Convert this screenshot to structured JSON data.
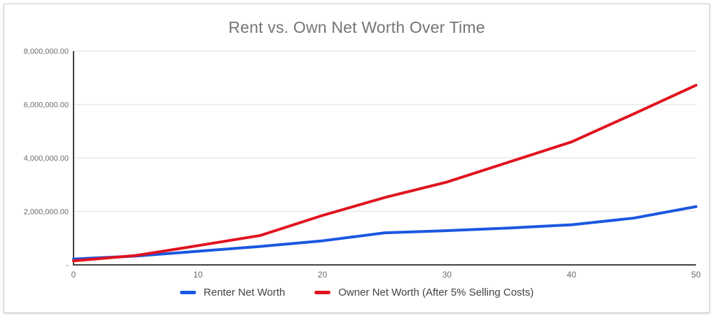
{
  "frame": {
    "background_color": "#ffffff",
    "border_color": "#cccccc"
  },
  "chart_data": {
    "type": "line",
    "title": "Rent vs. Own Net Worth Over Time",
    "title_color": "#757575",
    "xlabel": "",
    "ylabel": "",
    "xlim": [
      0,
      50
    ],
    "ylim": [
      0,
      8000000
    ],
    "grid": "horizontal",
    "grid_color": "#e8e8e8",
    "axis_color": "#424242",
    "tick_label_color": "#6b6b6b",
    "legend_position": "bottom",
    "legend_text_color": "#424242",
    "x": [
      0,
      5,
      10,
      15,
      20,
      25,
      30,
      35,
      40,
      45,
      50
    ],
    "x_ticks": [
      0,
      10,
      20,
      30,
      40,
      50
    ],
    "y_ticks": [
      {
        "value": 8000000,
        "label": "8,000,000.00"
      },
      {
        "value": 6000000,
        "label": "6,000,000.00"
      },
      {
        "value": 4000000,
        "label": "4,000,000.00"
      },
      {
        "value": 2000000,
        "label": "2,000,000.00"
      },
      {
        "value": 0,
        "label": "-"
      }
    ],
    "series": [
      {
        "name": "Renter Net Worth",
        "color": "#1b57e0",
        "values": [
          220000,
          330000,
          510000,
          690000,
          900000,
          1200000,
          1280000,
          1380000,
          1500000,
          1750000,
          2180000
        ]
      },
      {
        "name": "Owner Net Worth (After 5% Selling Costs)",
        "color": "#e0131f",
        "values": [
          150000,
          350000,
          720000,
          1100000,
          1850000,
          2520000,
          3100000,
          3850000,
          4600000,
          5650000,
          6720000
        ]
      }
    ]
  }
}
